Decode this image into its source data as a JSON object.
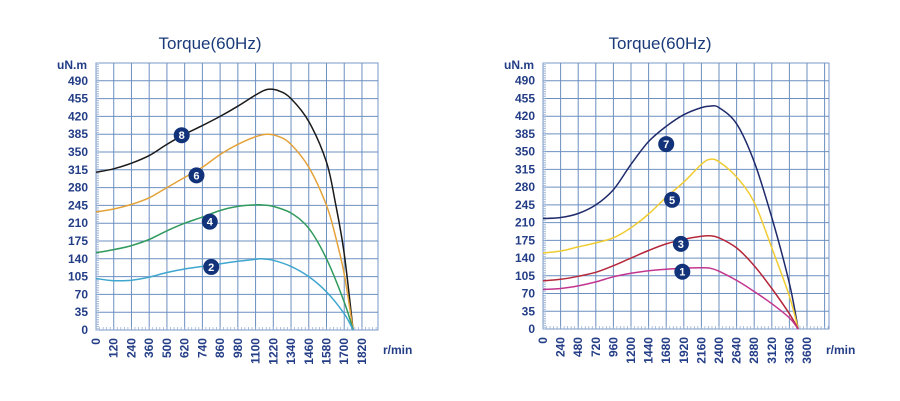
{
  "chart_data": [
    {
      "type": "line",
      "title": "Torque(60Hz)",
      "ylabel": "uN.m",
      "xlabel": "r/min",
      "ylim": [
        0,
        525
      ],
      "yticks": [
        0,
        35,
        70,
        105,
        140,
        175,
        210,
        245,
        280,
        315,
        350,
        385,
        420,
        455,
        490
      ],
      "xtick_labels": [
        "0",
        "120",
        "240",
        "360",
        "500",
        "620",
        "740",
        "860",
        "980",
        "1100",
        "1220",
        "1340",
        "1460",
        "1580",
        "1700",
        "1820"
      ],
      "grid": true,
      "series": [
        {
          "name": "8",
          "color": "#1a1a1a",
          "x": [
            0,
            120,
            240,
            360,
            500,
            620,
            740,
            860,
            980,
            1100,
            1180,
            1260,
            1340,
            1460,
            1580,
            1640,
            1700,
            1760
          ],
          "y": [
            310,
            317,
            328,
            343,
            365,
            385,
            402,
            420,
            440,
            462,
            473,
            470,
            455,
            410,
            330,
            250,
            150,
            0
          ]
        },
        {
          "name": "6",
          "color": "#e4a23a",
          "x": [
            0,
            120,
            240,
            360,
            500,
            620,
            740,
            860,
            980,
            1100,
            1180,
            1260,
            1340,
            1460,
            1580,
            1640,
            1700,
            1760
          ],
          "y": [
            232,
            238,
            247,
            260,
            280,
            300,
            320,
            345,
            365,
            380,
            385,
            380,
            365,
            320,
            245,
            185,
            110,
            0
          ]
        },
        {
          "name": "4",
          "color": "#2f9a5c",
          "x": [
            0,
            120,
            240,
            360,
            500,
            620,
            740,
            860,
            980,
            1100,
            1140,
            1220,
            1340,
            1460,
            1580,
            1700,
            1760
          ],
          "y": [
            152,
            158,
            166,
            178,
            195,
            210,
            222,
            235,
            243,
            246,
            246,
            243,
            230,
            200,
            140,
            55,
            0
          ]
        },
        {
          "name": "2",
          "color": "#3fa6cf",
          "x": [
            0,
            120,
            240,
            360,
            500,
            620,
            740,
            860,
            980,
            1100,
            1140,
            1220,
            1340,
            1460,
            1580,
            1700,
            1760
          ],
          "y": [
            101,
            97,
            98,
            104,
            113,
            120,
            125,
            130,
            135,
            139,
            140,
            137,
            125,
            105,
            75,
            32,
            0
          ]
        }
      ],
      "labels": [
        {
          "text": "8",
          "x": 600,
          "y": 383
        },
        {
          "text": "6",
          "x": 700,
          "y": 304
        },
        {
          "text": "4",
          "x": 790,
          "y": 213
        },
        {
          "text": "2",
          "x": 800,
          "y": 124
        }
      ]
    },
    {
      "type": "line",
      "title": "Torque(60Hz)",
      "ylabel": "uN.m",
      "xlabel": "r/min",
      "ylim": [
        0,
        525
      ],
      "yticks": [
        0,
        35,
        70,
        105,
        140,
        175,
        210,
        245,
        280,
        315,
        350,
        385,
        420,
        455,
        490
      ],
      "xtick_labels": [
        "0",
        "240",
        "480",
        "720",
        "960",
        "1200",
        "1440",
        "1680",
        "1920",
        "2160",
        "2400",
        "2640",
        "2880",
        "3120",
        "3360",
        "3600"
      ],
      "grid": true,
      "series": [
        {
          "name": "7",
          "color": "#1f2a6b",
          "x": [
            0,
            240,
            480,
            720,
            960,
            1200,
            1440,
            1680,
            1920,
            2160,
            2280,
            2400,
            2640,
            2880,
            3120,
            3360,
            3480
          ],
          "y": [
            218,
            220,
            228,
            245,
            275,
            325,
            370,
            400,
            423,
            437,
            440,
            437,
            405,
            330,
            220,
            90,
            0
          ]
        },
        {
          "name": "5",
          "color": "#f0cc33",
          "x": [
            0,
            240,
            480,
            720,
            960,
            1200,
            1440,
            1680,
            1920,
            2160,
            2280,
            2400,
            2640,
            2880,
            3120,
            3360,
            3480
          ],
          "y": [
            150,
            154,
            162,
            170,
            180,
            200,
            227,
            260,
            290,
            325,
            335,
            330,
            300,
            250,
            160,
            65,
            0
          ]
        },
        {
          "name": "3",
          "color": "#b5273a",
          "x": [
            0,
            240,
            480,
            720,
            960,
            1200,
            1440,
            1680,
            1920,
            2160,
            2280,
            2400,
            2640,
            2880,
            3120,
            3360,
            3480
          ],
          "y": [
            95,
            98,
            104,
            112,
            125,
            140,
            155,
            168,
            177,
            183,
            184,
            180,
            160,
            125,
            80,
            30,
            0
          ]
        },
        {
          "name": "1",
          "color": "#c2358f",
          "x": [
            0,
            240,
            480,
            720,
            960,
            1200,
            1440,
            1680,
            1920,
            2160,
            2280,
            2400,
            2640,
            2880,
            3120,
            3360,
            3480
          ],
          "y": [
            78,
            80,
            85,
            93,
            103,
            110,
            115,
            118,
            120,
            121,
            120,
            114,
            96,
            74,
            50,
            22,
            0
          ]
        }
      ],
      "labels": [
        {
          "text": "7",
          "x": 1680,
          "y": 365
        },
        {
          "text": "5",
          "x": 1760,
          "y": 255
        },
        {
          "text": "3",
          "x": 1880,
          "y": 168
        },
        {
          "text": "1",
          "x": 1900,
          "y": 113
        }
      ]
    }
  ]
}
